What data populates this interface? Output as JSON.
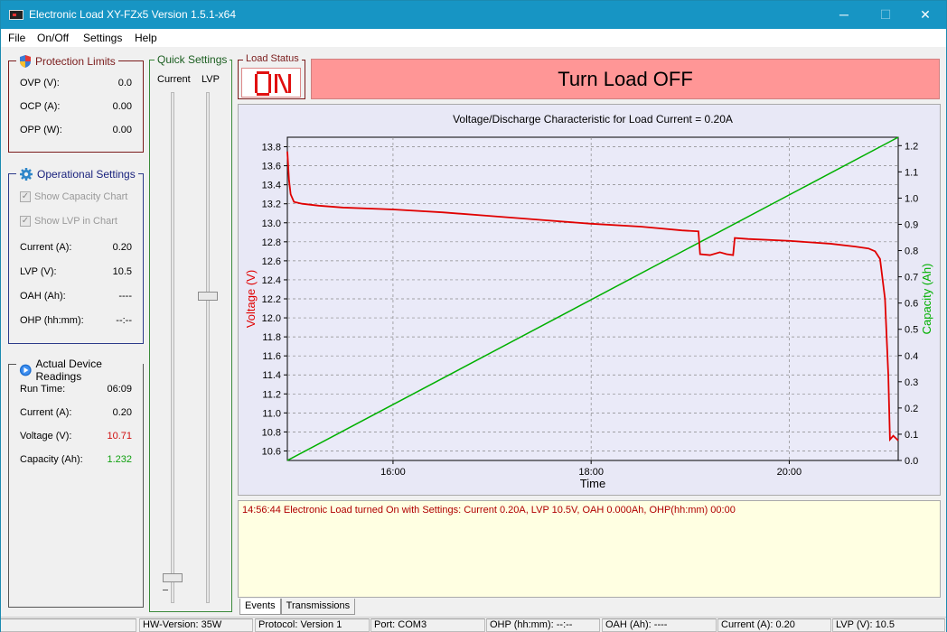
{
  "window": {
    "title": "Electronic Load XY-FZx5  Version 1.5.1-x64",
    "minimize_glyph": "─",
    "maximize_glyph": "☐",
    "close_glyph": "✕"
  },
  "menu": {
    "file": "File",
    "onoff": "On/Off",
    "settings": "Settings",
    "help": "Help"
  },
  "protection": {
    "title": "Protection Limits",
    "ovp_label": "OVP (V):",
    "ovp_value": "0.0",
    "ocp_label": "OCP (A):",
    "ocp_value": "0.00",
    "opp_label": "OPP (W):",
    "opp_value": "0.00"
  },
  "operational": {
    "title": "Operational Settings",
    "show_capacity": "Show Capacity Chart",
    "show_lvp": "Show LVP in Chart",
    "current_label": "Current (A):",
    "current_value": "0.20",
    "lvp_label": "LVP (V):",
    "lvp_value": "10.5",
    "oah_label": "OAH (Ah):",
    "oah_value": "----",
    "ohp_label": "OHP (hh:mm):",
    "ohp_value": "--:--"
  },
  "readings": {
    "title": "Actual Device Readings",
    "runtime_label": "Run Time:",
    "runtime_value": "06:09",
    "current_label": "Current (A):",
    "current_value": "0.20",
    "voltage_label": "Voltage (V):",
    "voltage_value": "10.71",
    "capacity_label": "Capacity (Ah):",
    "capacity_value": "1.232"
  },
  "quick": {
    "title": "Quick Settings",
    "current_label": "Current",
    "lvp_label": "LVP",
    "current_level_fraction": 0.05,
    "lvp_level_fraction": 0.6
  },
  "load_status": {
    "title": "Load Status",
    "display_text": "ON",
    "toggle_label": "Turn Load OFF"
  },
  "colors": {
    "voltage": "#e00000",
    "capacity": "#00b000",
    "button_off": "#ff9696",
    "title_bar": "#1795c4"
  },
  "chart_data": {
    "type": "line",
    "title": "Voltage/Discharge Characteristic for Load Current = 0.20A",
    "xlabel": "Time",
    "ylabel": "Voltage (V)",
    "y2label": "Capacity (Ah)",
    "xlim": [
      "14:56",
      "21:06"
    ],
    "x_ticks": [
      "16:00",
      "18:00",
      "20:00"
    ],
    "ylim": [
      10.5,
      13.9
    ],
    "y_ticks": [
      "10.6",
      "10.8",
      "11.0",
      "11.2",
      "11.4",
      "11.6",
      "11.8",
      "12.0",
      "12.2",
      "12.4",
      "12.6",
      "12.8",
      "13.0",
      "13.2",
      "13.4",
      "13.6",
      "13.8"
    ],
    "y2lim": [
      0.0,
      1.232
    ],
    "y2_ticks": [
      "0.0",
      "0.1",
      "0.2",
      "0.3",
      "0.4",
      "0.5",
      "0.6",
      "0.7",
      "0.8",
      "0.9",
      "1.0",
      "1.1",
      "1.2"
    ],
    "grid": true,
    "series": [
      {
        "name": "Voltage (V)",
        "axis": "left",
        "x": [
          "14:56",
          "14:57",
          "14:58",
          "15:00",
          "15:05",
          "15:15",
          "15:30",
          "16:00",
          "16:30",
          "17:00",
          "17:30",
          "18:00",
          "18:30",
          "18:55",
          "19:05",
          "19:06",
          "19:12",
          "19:18",
          "19:22",
          "19:26",
          "19:27",
          "19:35",
          "20:00",
          "20:25",
          "20:40",
          "20:48",
          "20:52",
          "20:55",
          "20:58",
          "21:00",
          "21:01",
          "21:03",
          "21:06"
        ],
        "values": [
          13.75,
          13.45,
          13.3,
          13.22,
          13.2,
          13.18,
          13.16,
          13.14,
          13.11,
          13.07,
          13.03,
          12.99,
          12.96,
          12.92,
          12.91,
          12.67,
          12.66,
          12.69,
          12.67,
          12.66,
          12.84,
          12.83,
          12.81,
          12.78,
          12.75,
          12.73,
          12.7,
          12.62,
          12.2,
          11.4,
          10.72,
          10.76,
          10.71
        ]
      },
      {
        "name": "Capacity (Ah)",
        "axis": "right",
        "x": [
          "14:56",
          "21:06"
        ],
        "values": [
          0.0,
          1.232
        ]
      }
    ]
  },
  "log": {
    "line1": "14:56:44 Electronic Load turned On with Settings: Current 0.20A, LVP 10.5V, OAH 0.000Ah, OHP(hh:mm) 00:00"
  },
  "tabs": {
    "events": "Events",
    "transmissions": "Transmissions"
  },
  "statusbar": {
    "hw": "HW-Version: 35W",
    "protocol": "Protocol: Version 1",
    "port": "Port:  COM3",
    "ohp": "OHP (hh:mm):  --:--",
    "oah": "OAH (Ah):  ----",
    "current": "Current (A):  0.20",
    "lvp": "LVP (V):  10.5"
  }
}
